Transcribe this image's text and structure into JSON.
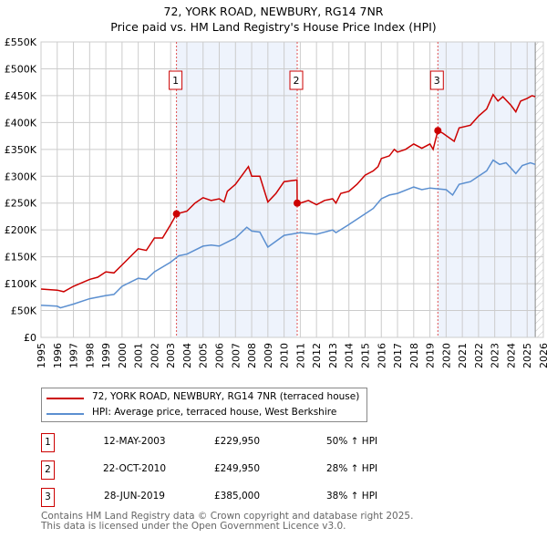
{
  "chart_data": {
    "type": "line",
    "title": "72, YORK ROAD, NEWBURY, RG14 7NR",
    "subtitle": "Price paid vs. HM Land Registry's House Price Index (HPI)",
    "xlim": [
      1995,
      2026
    ],
    "ylim": [
      0,
      550000
    ],
    "x_ticks": [
      "1995",
      "1996",
      "1997",
      "1998",
      "1999",
      "2000",
      "2001",
      "2002",
      "2003",
      "2004",
      "2005",
      "2006",
      "2007",
      "2008",
      "2009",
      "2010",
      "2011",
      "2012",
      "2013",
      "2014",
      "2015",
      "2016",
      "2017",
      "2018",
      "2019",
      "2020",
      "2021",
      "2022",
      "2023",
      "2024",
      "2025",
      "2026"
    ],
    "y_ticks": [
      {
        "v": 0,
        "l": "£0"
      },
      {
        "v": 50000,
        "l": "£50K"
      },
      {
        "v": 100000,
        "l": "£100K"
      },
      {
        "v": 150000,
        "l": "£150K"
      },
      {
        "v": 200000,
        "l": "£200K"
      },
      {
        "v": 250000,
        "l": "£250K"
      },
      {
        "v": 300000,
        "l": "£300K"
      },
      {
        "v": 350000,
        "l": "£350K"
      },
      {
        "v": 400000,
        "l": "£400K"
      },
      {
        "v": 450000,
        "l": "£450K"
      },
      {
        "v": 500000,
        "l": "£500K"
      },
      {
        "v": 550000,
        "l": "£550K"
      }
    ],
    "grid": true,
    "series": [
      {
        "name": "72, YORK ROAD, NEWBURY, RG14 7NR (terraced house)",
        "color": "#cc0000",
        "x": [
          1995,
          1996,
          1996.4,
          1997,
          1998,
          1998.5,
          1999,
          1999.5,
          2000,
          2000.5,
          2001,
          2001.5,
          2002,
          2002.5,
          2003,
          2003.37,
          2004,
          2004.5,
          2005,
          2005.5,
          2006,
          2006.3,
          2006.5,
          2007,
          2007.8,
          2008,
          2008.5,
          2009,
          2009.5,
          2010,
          2010.8,
          2010.81,
          2011,
          2011.5,
          2012,
          2012.5,
          2013,
          2013.2,
          2013.5,
          2014,
          2014.5,
          2015,
          2015.5,
          2015.8,
          2016,
          2016.5,
          2016.8,
          2017,
          2017.5,
          2018,
          2018.5,
          2019,
          2019.2,
          2019.49,
          2019.8,
          2020.5,
          2020.8,
          2021.5,
          2022,
          2022.5,
          2022.9,
          2023.2,
          2023.5,
          2024,
          2024.3,
          2024.6,
          2025,
          2025.3,
          2025.5
        ],
        "y": [
          90000,
          88000,
          85000,
          95000,
          108000,
          112000,
          122000,
          120000,
          135000,
          150000,
          165000,
          162000,
          185000,
          185000,
          210000,
          229950,
          235000,
          250000,
          260000,
          255000,
          258000,
          252000,
          272000,
          285000,
          318000,
          300000,
          300000,
          252000,
          268000,
          290000,
          293000,
          249950,
          250000,
          255000,
          247000,
          255000,
          258000,
          250000,
          268000,
          272000,
          285000,
          302000,
          310000,
          318000,
          333000,
          338000,
          350000,
          345000,
          350000,
          360000,
          352000,
          360000,
          350000,
          385000,
          380000,
          365000,
          390000,
          395000,
          412000,
          425000,
          452000,
          440000,
          448000,
          432000,
          420000,
          440000,
          445000,
          450000,
          448000
        ]
      },
      {
        "name": "HPI: Average price, terraced house, West Berkshire",
        "color": "#5b8fd0",
        "x": [
          1995,
          1996,
          1996.2,
          1997,
          1998,
          1999,
          1999.5,
          2000,
          2001,
          2001.5,
          2002,
          2003,
          2003.5,
          2004,
          2005,
          2005.5,
          2006,
          2007,
          2007.7,
          2008,
          2008.5,
          2009,
          2010,
          2011,
          2012,
          2013,
          2013.2,
          2014,
          2015,
          2015.5,
          2016,
          2016.5,
          2017,
          2018,
          2018.5,
          2019,
          2020,
          2020.4,
          2020.8,
          2021.5,
          2022,
          2022.5,
          2022.9,
          2023.3,
          2023.7,
          2024,
          2024.3,
          2024.7,
          2025.2,
          2025.5
        ],
        "y": [
          60000,
          58000,
          55000,
          62000,
          72000,
          78000,
          80000,
          95000,
          110000,
          108000,
          122000,
          140000,
          152000,
          155000,
          170000,
          172000,
          170000,
          185000,
          205000,
          198000,
          196000,
          168000,
          190000,
          195000,
          192000,
          200000,
          195000,
          210000,
          230000,
          240000,
          258000,
          265000,
          268000,
          280000,
          275000,
          278000,
          275000,
          265000,
          285000,
          290000,
          300000,
          310000,
          330000,
          322000,
          325000,
          315000,
          305000,
          320000,
          325000,
          322000
        ]
      }
    ],
    "sales": [
      {
        "label": "1",
        "date": "12-MAY-2003",
        "x": 2003.36,
        "price": "£229,950",
        "value": 229950,
        "hpi": "50% ↑ HPI"
      },
      {
        "label": "2",
        "date": "22-OCT-2010",
        "x": 2010.81,
        "price": "£249,950",
        "value": 249950,
        "hpi": "28% ↑ HPI"
      },
      {
        "label": "3",
        "date": "28-JUN-2019",
        "x": 2019.49,
        "price": "£385,000",
        "value": 385000,
        "hpi": "38% ↑ HPI"
      }
    ],
    "shaded_ranges": [
      [
        2003.36,
        2010.81
      ],
      [
        2019.49,
        2025.5
      ]
    ],
    "forecast_start": 2025.5,
    "legend_position": "below"
  },
  "footer": {
    "line1": "Contains HM Land Registry data © Crown copyright and database right 2025.",
    "line2": "This data is licensed under the Open Government Licence v3.0."
  }
}
